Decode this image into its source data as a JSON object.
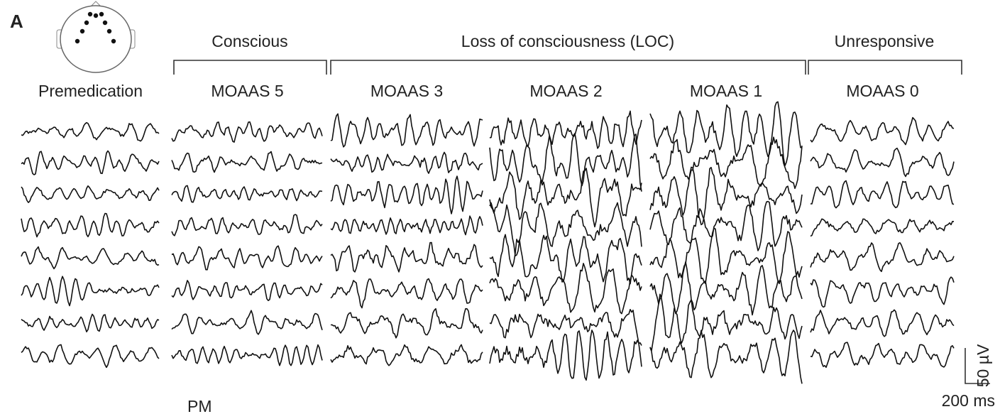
{
  "panel_label": "A",
  "groups": [
    "Conscious",
    "Loss of consciousness (LOC)",
    "Unresponsive"
  ],
  "columns": [
    "Premedication",
    "MOAAS 5",
    "MOAAS 3",
    "MOAAS 2",
    "MOAAS 1",
    "MOAAS 0"
  ],
  "scale_bar": {
    "vertical": "50 µV",
    "horizontal": "200 ms"
  },
  "footnote": "PM"
}
